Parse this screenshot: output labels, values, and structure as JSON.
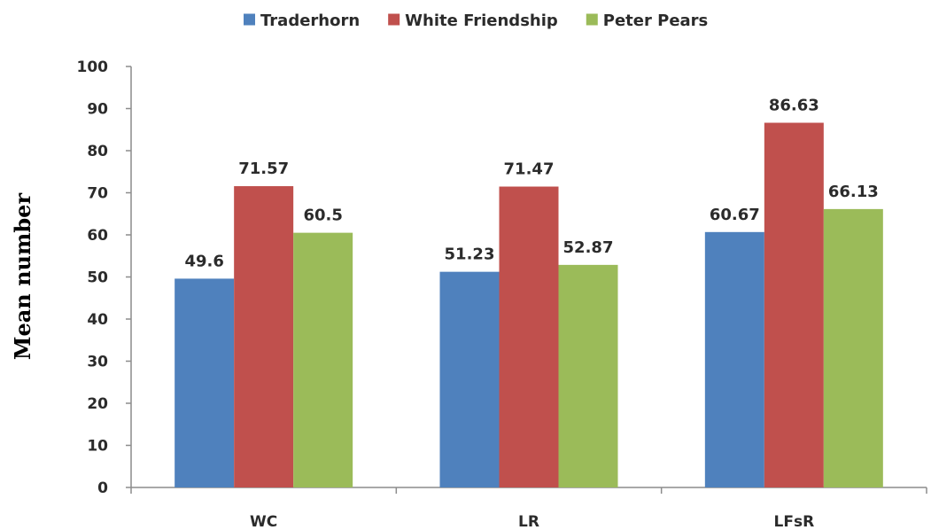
{
  "chart_data": {
    "type": "bar",
    "title": "",
    "xlabel": "",
    "ylabel": "Mean number",
    "ylim": [
      0,
      100
    ],
    "yticks": [
      0,
      10,
      20,
      30,
      40,
      50,
      60,
      70,
      80,
      90,
      100
    ],
    "categories": [
      "WC",
      "LR",
      "LFsR"
    ],
    "series": [
      {
        "name": "Traderhorn",
        "color": "#4f81bd",
        "values": [
          49.6,
          51.23,
          60.67
        ],
        "labels": [
          "49.6",
          "51.23",
          "60.67"
        ]
      },
      {
        "name": "White Friendship",
        "color": "#c0504d",
        "values": [
          71.57,
          71.47,
          86.63
        ],
        "labels": [
          "71.57",
          "71.47",
          "86.63"
        ]
      },
      {
        "name": "Peter Pears",
        "color": "#9bbb59",
        "values": [
          60.5,
          52.87,
          66.13
        ],
        "labels": [
          "60.5",
          "52.87",
          "66.13"
        ]
      }
    ],
    "legend": "top",
    "grid": false
  }
}
